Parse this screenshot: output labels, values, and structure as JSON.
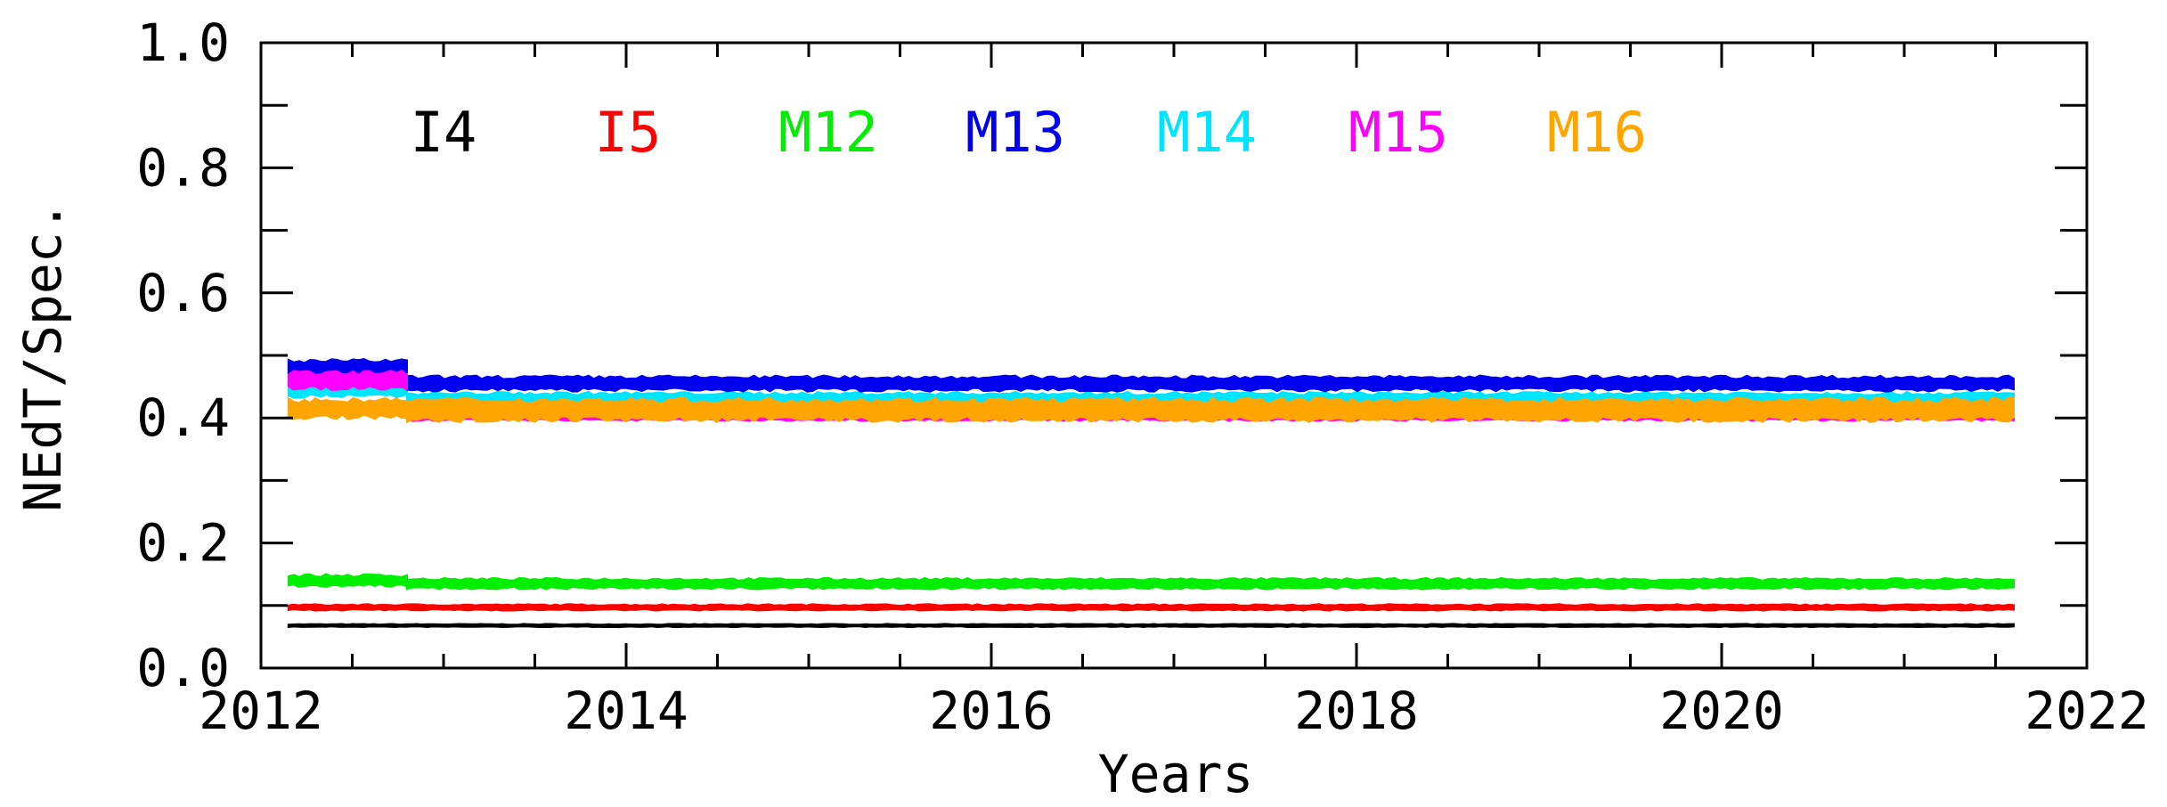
{
  "chart_data": {
    "type": "line",
    "title": "",
    "xlabel": "Years",
    "ylabel": "NEdT/Spec.",
    "xlim": [
      2012,
      2022
    ],
    "ylim": [
      0.0,
      1.0
    ],
    "x_ticks": [
      2012,
      2014,
      2016,
      2018,
      2020,
      2022
    ],
    "x_tick_labels": [
      "2012",
      "2014",
      "2016",
      "2018",
      "2020",
      "2022"
    ],
    "y_ticks": [
      0.0,
      0.2,
      0.4,
      0.6,
      0.8,
      1.0
    ],
    "y_tick_labels": [
      "0.0",
      "0.2",
      "0.4",
      "0.6",
      "0.8",
      "1.0"
    ],
    "x_minor_step": 0.5,
    "y_minor_step": 0.1,
    "grid": false,
    "legend_position": "top",
    "series": [
      {
        "name": "I4",
        "color": "#000000",
        "segments": [
          {
            "x": [
              2012.15,
              2021.6
            ],
            "y": [
              0.068,
              0.068
            ],
            "spread": 0.004
          }
        ]
      },
      {
        "name": "I5",
        "color": "#ff0000",
        "segments": [
          {
            "x": [
              2012.15,
              2021.6
            ],
            "y": [
              0.097,
              0.097
            ],
            "spread": 0.008
          }
        ]
      },
      {
        "name": "M12",
        "color": "#00ee00",
        "segments": [
          {
            "x": [
              2012.15,
              2012.8
            ],
            "y": [
              0.14,
              0.14
            ],
            "spread": 0.016
          },
          {
            "x": [
              2012.8,
              2021.6
            ],
            "y": [
              0.135,
              0.135
            ],
            "spread": 0.014
          }
        ]
      },
      {
        "name": "M13",
        "color": "#0000ee",
        "segments": [
          {
            "x": [
              2012.15,
              2012.8
            ],
            "y": [
              0.48,
              0.48
            ],
            "spread": 0.022
          },
          {
            "x": [
              2012.8,
              2021.6
            ],
            "y": [
              0.455,
              0.455
            ],
            "spread": 0.02
          }
        ]
      },
      {
        "name": "M14",
        "color": "#00e5ff",
        "segments": [
          {
            "x": [
              2012.15,
              2012.8
            ],
            "y": [
              0.445,
              0.445
            ],
            "spread": 0.02
          },
          {
            "x": [
              2012.8,
              2021.6
            ],
            "y": [
              0.43,
              0.43
            ],
            "spread": 0.018
          }
        ]
      },
      {
        "name": "M15",
        "color": "#ff00ff",
        "segments": [
          {
            "x": [
              2012.15,
              2012.8
            ],
            "y": [
              0.46,
              0.46
            ],
            "spread": 0.024
          },
          {
            "x": [
              2012.8,
              2021.6
            ],
            "y": [
              0.403,
              0.403
            ],
            "spread": 0.012
          }
        ]
      },
      {
        "name": "M16",
        "color": "#ffa500",
        "segments": [
          {
            "x": [
              2012.15,
              2012.8
            ],
            "y": [
              0.415,
              0.415
            ],
            "spread": 0.026
          },
          {
            "x": [
              2012.8,
              2021.6
            ],
            "y": [
              0.413,
              0.413
            ],
            "spread": 0.03
          }
        ]
      }
    ]
  }
}
